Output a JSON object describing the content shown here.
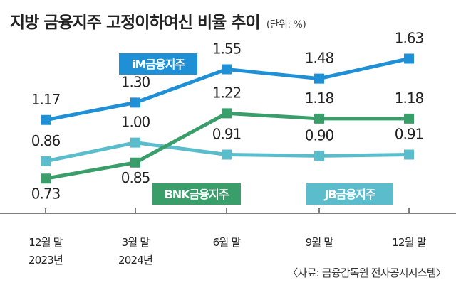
{
  "title": "지방 금융지주 고정이하여신 비율 추이",
  "unit": "(단위: %)",
  "source": "〈자료: 금융감독원 전자공시시스템〉",
  "chart_data": {
    "type": "line",
    "categories": [
      [
        "12월 말",
        "2023년"
      ],
      [
        "3월 말",
        "2024년"
      ],
      [
        "6월 말"
      ],
      [
        "9월 말"
      ],
      [
        "12월 말"
      ]
    ],
    "series": [
      {
        "name": "iM금융지주",
        "color": "#1f8fd6",
        "values": [
          1.17,
          1.3,
          1.55,
          1.48,
          1.63
        ]
      },
      {
        "name": "BNK금융지주",
        "color": "#3a9e6b",
        "values": [
          0.73,
          0.85,
          1.22,
          1.18,
          1.18
        ]
      },
      {
        "name": "JB금융지주",
        "color": "#5bbccc",
        "values": [
          0.86,
          1.0,
          0.91,
          0.9,
          0.91
        ]
      }
    ],
    "ylim": [
      0.55,
      1.75
    ],
    "grid": false,
    "legend": "inline-labels"
  }
}
